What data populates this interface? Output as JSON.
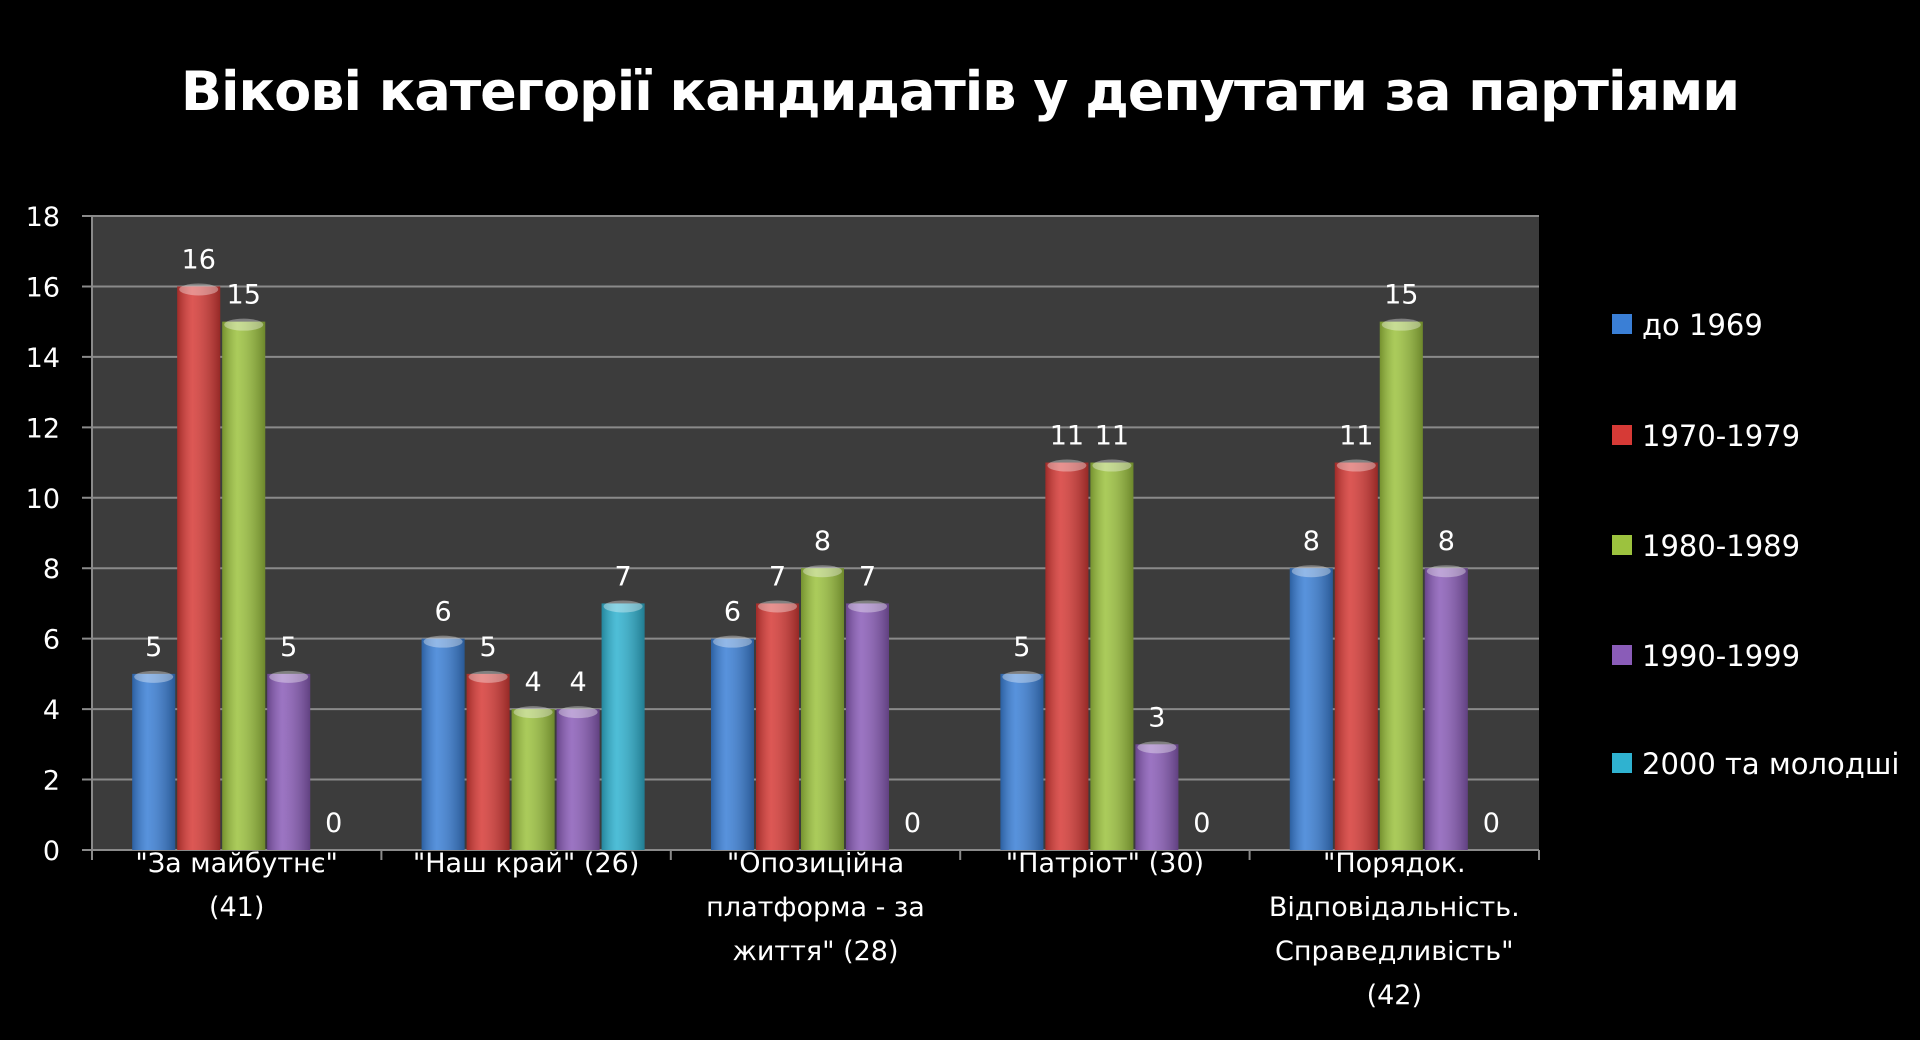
{
  "chart_data": {
    "type": "bar",
    "title": "Вікові категорії кандидатів у депутати за партіями",
    "xlabel": "",
    "ylabel": "",
    "ylim": [
      0,
      18
    ],
    "yticks": [
      0,
      2,
      4,
      6,
      8,
      10,
      12,
      14,
      16,
      18
    ],
    "grid": true,
    "legend_position": "right",
    "categories": [
      [
        "\"За майбутнє\"",
        "(41)"
      ],
      [
        "\"Наш край\" (26)"
      ],
      [
        "\"Опозиційна",
        "платформа - за",
        "життя\" (28)"
      ],
      [
        "\"Патріот\" (30)"
      ],
      [
        "\"Порядок.",
        "Відповідальність.",
        "Справедливість\"",
        "(42)"
      ]
    ],
    "series": [
      {
        "name": "до   1969",
        "color": "#3a7fd6",
        "values": [
          5,
          6,
          6,
          5,
          8
        ]
      },
      {
        "name": "1970-1979",
        "color": "#d63a36",
        "values": [
          16,
          5,
          7,
          11,
          11
        ]
      },
      {
        "name": "1980-1989",
        "color": "#9cc23e",
        "values": [
          15,
          4,
          8,
          11,
          15
        ]
      },
      {
        "name": "1990-1999",
        "color": "#8a5cb8",
        "values": [
          5,
          4,
          7,
          3,
          8
        ]
      },
      {
        "name": "2000 та молодші",
        "color": "#2fb2d0",
        "values": [
          0,
          7,
          0,
          0,
          0
        ]
      }
    ]
  }
}
